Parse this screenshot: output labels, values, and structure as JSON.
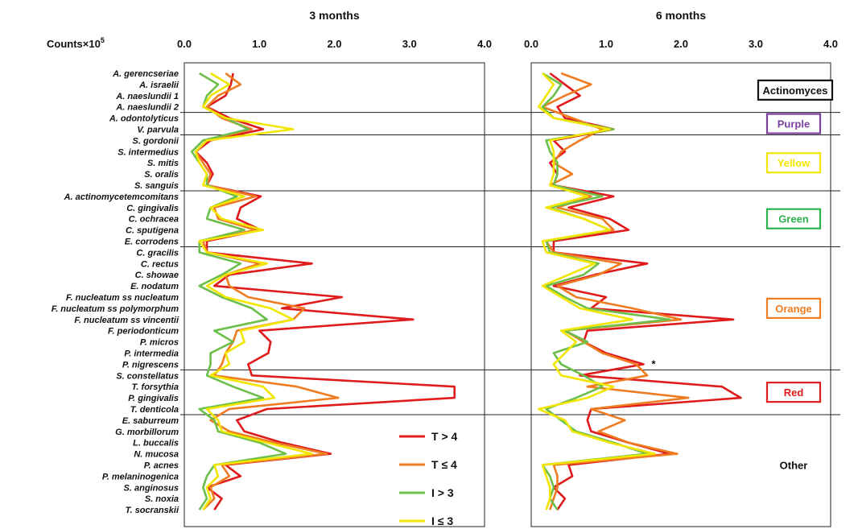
{
  "chart_data": {
    "type": "line",
    "orientation": "horizontal-profile",
    "xlabel": "Counts×10",
    "xlabel_superscript": "5",
    "xlim": [
      0,
      4
    ],
    "x_ticks": [
      "0.0",
      "1.0",
      "2.0",
      "3.0",
      "4.0"
    ],
    "categories": [
      "A. gerencseriae",
      "A. israelii",
      "A. naeslundii 1",
      "A. naeslundii 2",
      "A. odontolyticus",
      "V. parvula",
      "S. gordonii",
      "S. intermedius",
      "S. mitis",
      "S. oralis",
      "S. sanguis",
      "A. actinomycetemcomitans",
      "C. gingivalis",
      "C. ochracea",
      "C. sputigena",
      "E. corrodens",
      "C. gracilis",
      "C. rectus",
      "C. showae",
      "E. nodatum",
      "F. nucleatum ss nucleatum",
      "F. nucleatum ss polymorphum",
      "F. nucleatum ss vincentii",
      "F. periodonticum",
      "P. micros",
      "P. intermedia",
      "P. nigrescens",
      "S. constellatus",
      "T. forsythia",
      "P. gingivalis",
      "T. denticola",
      "E. saburreum",
      "G. morbillorum",
      "L. buccalis",
      "N. mucosa",
      "P. acnes",
      "P. melaninogenica",
      "S. anginosus",
      "S. noxia",
      "T. socranskii"
    ],
    "complexes": [
      {
        "name": "Actinomyces",
        "color": "#111111",
        "start": 0,
        "end": 3
      },
      {
        "name": "Purple",
        "color": "#7b3fa0",
        "start": 4,
        "end": 5
      },
      {
        "name": "Yellow",
        "color": "#f2e600",
        "start": 6,
        "end": 10
      },
      {
        "name": "Green",
        "color": "#2bb24c",
        "start": 11,
        "end": 15
      },
      {
        "name": "Orange",
        "color": "#f07c22",
        "start": 16,
        "end": 26
      },
      {
        "name": "Red",
        "color": "#e01b1b",
        "start": 27,
        "end": 30
      },
      {
        "name": "Other",
        "color": "#111111",
        "start": 31,
        "end": 39
      }
    ],
    "panels": [
      {
        "title": "3 months",
        "series": [
          {
            "name": "T > 4",
            "color": "#e01b1b",
            "values": [
              0.65,
              0.62,
              0.55,
              0.3,
              0.6,
              1.05,
              0.35,
              0.15,
              0.3,
              0.38,
              0.3,
              1.02,
              0.75,
              0.7,
              1.02,
              0.3,
              0.3,
              1.7,
              0.6,
              0.4,
              2.1,
              1.3,
              3.05,
              1.0,
              1.15,
              1.12,
              0.85,
              0.9,
              3.6,
              3.6,
              1.1,
              0.7,
              0.8,
              1.3,
              1.95,
              0.55,
              0.75,
              0.3,
              0.5,
              0.4
            ]
          },
          {
            "name": "T ≤ 4",
            "color": "#f07c22",
            "values": [
              0.55,
              0.75,
              0.45,
              0.3,
              0.5,
              0.9,
              0.3,
              0.15,
              0.25,
              0.35,
              0.3,
              0.95,
              0.4,
              0.45,
              0.95,
              0.25,
              0.3,
              1.0,
              0.55,
              0.6,
              0.85,
              1.6,
              1.45,
              0.7,
              0.65,
              0.55,
              0.5,
              0.4,
              1.5,
              2.05,
              0.6,
              0.35,
              0.6,
              1.2,
              1.9,
              0.5,
              0.6,
              0.35,
              0.4,
              0.25
            ]
          },
          {
            "name": "I > 3",
            "color": "#6cbf4a",
            "values": [
              0.2,
              0.45,
              0.3,
              0.25,
              0.55,
              0.85,
              0.25,
              0.1,
              0.2,
              0.3,
              0.3,
              0.7,
              0.35,
              0.3,
              0.8,
              0.2,
              0.2,
              0.75,
              0.5,
              0.2,
              0.5,
              0.9,
              1.1,
              0.4,
              0.65,
              0.35,
              0.35,
              0.3,
              0.65,
              1.05,
              0.2,
              0.4,
              0.45,
              1.0,
              1.35,
              0.4,
              0.3,
              0.25,
              0.3,
              0.2
            ]
          },
          {
            "name": "I ≤ 3",
            "color": "#f2e600",
            "values": [
              0.35,
              0.6,
              0.35,
              0.25,
              0.55,
              1.45,
              0.3,
              0.15,
              0.2,
              0.3,
              0.25,
              0.8,
              0.35,
              0.5,
              1.05,
              0.2,
              0.3,
              1.1,
              0.55,
              0.3,
              0.55,
              1.15,
              1.45,
              0.75,
              0.8,
              0.55,
              0.6,
              0.35,
              1.05,
              1.2,
              0.3,
              0.45,
              0.5,
              1.1,
              1.7,
              0.4,
              0.45,
              0.3,
              0.35,
              0.25
            ]
          }
        ]
      },
      {
        "title": "6 months",
        "series": [
          {
            "name": "T > 4",
            "color": "#e01b1b",
            "values": [
              0.25,
              0.45,
              0.65,
              0.35,
              0.45,
              1.1,
              0.3,
              0.45,
              0.25,
              0.35,
              0.3,
              1.1,
              0.5,
              1.05,
              1.3,
              0.3,
              0.3,
              1.55,
              0.85,
              0.3,
              1.0,
              0.8,
              2.7,
              0.75,
              0.7,
              1.0,
              1.5,
              0.65,
              2.55,
              2.8,
              0.8,
              0.75,
              0.8,
              1.3,
              1.85,
              0.5,
              0.55,
              0.3,
              0.45,
              0.35
            ]
          },
          {
            "name": "T ≤ 4",
            "color": "#f07c22",
            "values": [
              0.4,
              0.8,
              0.45,
              0.15,
              0.55,
              0.95,
              0.65,
              0.4,
              0.3,
              0.55,
              0.25,
              0.8,
              0.35,
              0.95,
              1.1,
              0.2,
              0.3,
              1.2,
              0.9,
              0.35,
              0.6,
              1.35,
              2.0,
              0.45,
              0.7,
              0.95,
              1.4,
              1.55,
              0.75,
              2.1,
              0.8,
              1.25,
              0.9,
              1.3,
              1.95,
              0.3,
              0.35,
              0.35,
              0.3,
              0.25
            ]
          },
          {
            "name": "I > 3",
            "color": "#6cbf4a",
            "values": [
              0.15,
              0.4,
              0.3,
              0.15,
              0.3,
              1.1,
              0.2,
              0.25,
              0.35,
              0.35,
              0.3,
              0.95,
              0.25,
              0.7,
              1.05,
              0.2,
              0.25,
              0.9,
              0.7,
              0.2,
              0.45,
              0.75,
              1.85,
              0.45,
              0.75,
              0.3,
              0.4,
              0.7,
              0.95,
              0.6,
              0.2,
              0.4,
              0.6,
              1.1,
              1.55,
              0.15,
              0.25,
              0.3,
              0.25,
              0.35
            ]
          },
          {
            "name": "I ≤ 3",
            "color": "#f2e600",
            "values": [
              0.15,
              0.3,
              0.2,
              0.1,
              0.3,
              1.05,
              0.25,
              0.3,
              0.3,
              0.3,
              0.25,
              0.75,
              0.2,
              0.7,
              1.05,
              0.15,
              0.2,
              0.85,
              0.5,
              0.15,
              0.4,
              0.65,
              1.35,
              0.4,
              0.6,
              0.45,
              0.3,
              0.4,
              1.1,
              0.75,
              0.1,
              0.45,
              0.55,
              1.05,
              1.65,
              0.15,
              0.2,
              0.25,
              0.25,
              0.2
            ]
          }
        ]
      }
    ],
    "annotation": "*",
    "annotation_panel": 1,
    "annotation_category": "P. nigrescens",
    "legend": {
      "placement": "inside-bottom-right of left panel",
      "entries": [
        {
          "label": "T > 4",
          "color": "#e01b1b"
        },
        {
          "label": "T ≤ 4",
          "color": "#f07c22"
        },
        {
          "label": "I > 3",
          "color": "#6cbf4a"
        },
        {
          "label": "I ≤ 3",
          "color": "#f2e600"
        }
      ]
    },
    "grid": false
  }
}
